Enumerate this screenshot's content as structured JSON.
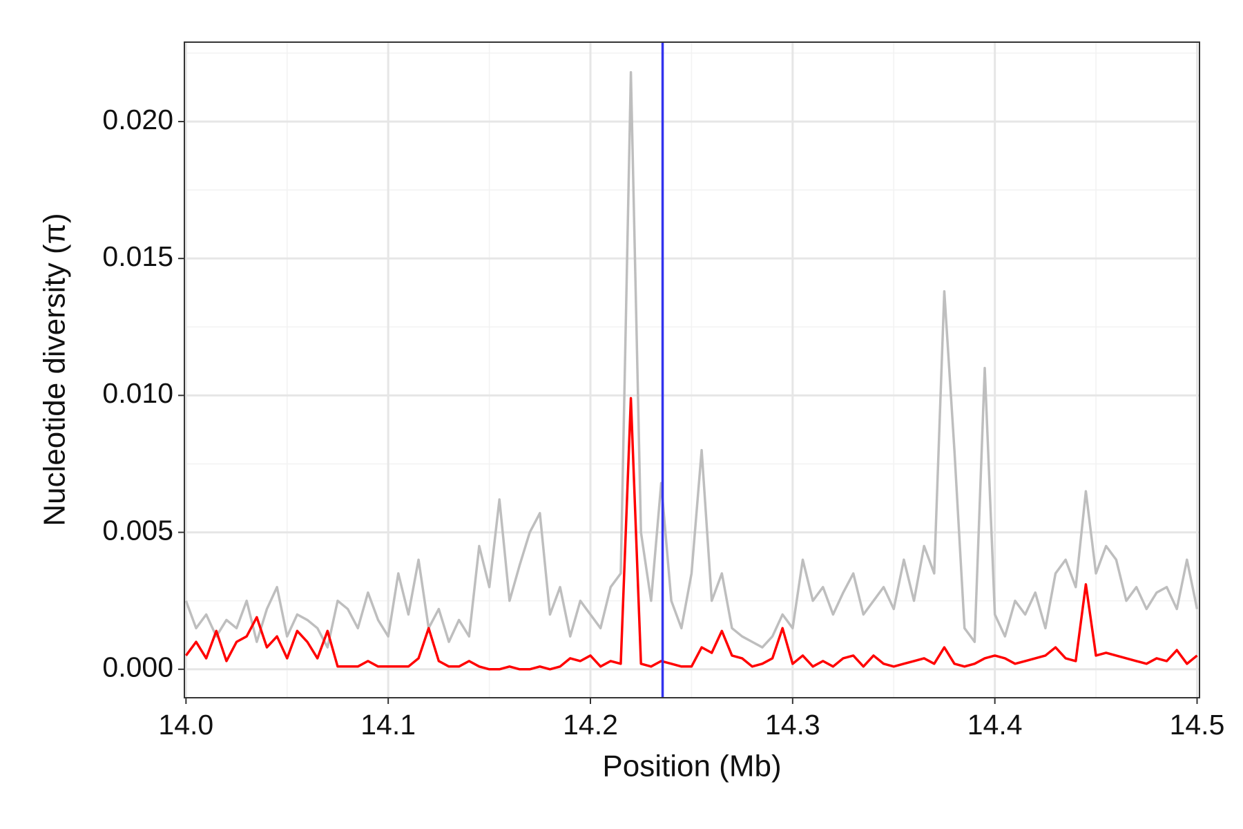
{
  "chart_data": {
    "type": "line",
    "x_label": "Position (Mb)",
    "y_label": "Nucleotide diversity (π)",
    "xlim": [
      13.9992,
      14.5012
    ],
    "ylim": [
      -0.00104,
      0.0229
    ],
    "xticks": [
      {
        "value": 14,
        "label": "14.0"
      },
      14.1,
      14.2,
      14.3,
      14.4,
      14.5
    ],
    "yticks": [
      {
        "value": 0,
        "label": "0.000"
      },
      0.005,
      {
        "value": 0.01,
        "label": "0.010"
      },
      0.015,
      {
        "value": 0.02,
        "label": "0.020"
      }
    ],
    "x_minor_ticks": [
      14.05,
      14.15,
      14.25,
      14.35,
      14.45
    ],
    "y_minor_ticks": [
      0.0025,
      0.0075,
      0.0125,
      0.0175,
      0.0225
    ],
    "grid": true,
    "vline": 14.2357,
    "vline_color": "#3333ee",
    "x": [
      14.0,
      14.005,
      14.01,
      14.015,
      14.02,
      14.025,
      14.03,
      14.035,
      14.04,
      14.045,
      14.05,
      14.055,
      14.06,
      14.065,
      14.07,
      14.075,
      14.08,
      14.085,
      14.09,
      14.095,
      14.1,
      14.105,
      14.11,
      14.115,
      14.12,
      14.125,
      14.13,
      14.135,
      14.14,
      14.145,
      14.15,
      14.155,
      14.16,
      14.165,
      14.17,
      14.175,
      14.18,
      14.185,
      14.19,
      14.195,
      14.2,
      14.205,
      14.21,
      14.215,
      14.22,
      14.225,
      14.23,
      14.235,
      14.24,
      14.245,
      14.25,
      14.255,
      14.26,
      14.265,
      14.27,
      14.275,
      14.28,
      14.285,
      14.29,
      14.295,
      14.3,
      14.305,
      14.31,
      14.315,
      14.32,
      14.325,
      14.33,
      14.335,
      14.34,
      14.345,
      14.35,
      14.355,
      14.36,
      14.365,
      14.37,
      14.375,
      14.38,
      14.385,
      14.39,
      14.395,
      14.4,
      14.405,
      14.41,
      14.415,
      14.42,
      14.425,
      14.43,
      14.435,
      14.44,
      14.445,
      14.45,
      14.455,
      14.46,
      14.465,
      14.47,
      14.475,
      14.48,
      14.485,
      14.49,
      14.495,
      14.5
    ],
    "series": [
      {
        "color": "#bebebe",
        "values": [
          0.0025,
          0.0015,
          0.002,
          0.0012,
          0.0018,
          0.0015,
          0.0025,
          0.001,
          0.0022,
          0.003,
          0.0012,
          0.002,
          0.0018,
          0.0015,
          0.0008,
          0.0025,
          0.0022,
          0.0015,
          0.0028,
          0.0018,
          0.0012,
          0.0035,
          0.002,
          0.004,
          0.0015,
          0.0022,
          0.001,
          0.0018,
          0.0012,
          0.0045,
          0.003,
          0.0062,
          0.0025,
          0.0038,
          0.005,
          0.0057,
          0.002,
          0.003,
          0.0012,
          0.0025,
          0.002,
          0.0015,
          0.003,
          0.0035,
          0.0218,
          0.005,
          0.0025,
          0.0068,
          0.0025,
          0.0015,
          0.0035,
          0.008,
          0.0025,
          0.0035,
          0.0015,
          0.0012,
          0.001,
          0.0008,
          0.0012,
          0.002,
          0.0015,
          0.004,
          0.0025,
          0.003,
          0.002,
          0.0028,
          0.0035,
          0.002,
          0.0025,
          0.003,
          0.0022,
          0.004,
          0.0025,
          0.0045,
          0.0035,
          0.0138,
          0.008,
          0.0015,
          0.001,
          0.011,
          0.002,
          0.0012,
          0.0025,
          0.002,
          0.0028,
          0.0015,
          0.0035,
          0.004,
          0.003,
          0.0065,
          0.0035,
          0.0045,
          0.004,
          0.0025,
          0.003,
          0.0022,
          0.0028,
          0.003,
          0.0022,
          0.004,
          0.0022
        ]
      },
      {
        "color": "#ff0000",
        "values": [
          0.0005,
          0.001,
          0.0004,
          0.0014,
          0.0003,
          0.001,
          0.0012,
          0.0019,
          0.0008,
          0.0012,
          0.0004,
          0.0014,
          0.001,
          0.0004,
          0.0014,
          0.0001,
          0.0001,
          0.0001,
          0.0003,
          0.0001,
          0.0001,
          0.0001,
          0.0001,
          0.0004,
          0.0015,
          0.0003,
          0.0001,
          0.0001,
          0.0003,
          0.0001,
          0,
          0,
          0.0001,
          0,
          0,
          0.0001,
          0,
          0.0001,
          0.0004,
          0.0003,
          0.0005,
          0.0001,
          0.0003,
          0.0002,
          0.0099,
          0.0002,
          0.0001,
          0.0003,
          0.0002,
          0.0001,
          0.0001,
          0.0008,
          0.0006,
          0.0014,
          0.0005,
          0.0004,
          0.0001,
          0.0002,
          0.0004,
          0.0015,
          0.0002,
          0.0005,
          0.0001,
          0.0003,
          0.0001,
          0.0004,
          0.0005,
          0.0001,
          0.0005,
          0.0002,
          0.0001,
          0.0002,
          0.0003,
          0.0004,
          0.0002,
          0.0008,
          0.0002,
          0.0001,
          0.0002,
          0.0004,
          0.0005,
          0.0004,
          0.0002,
          0.0003,
          0.0004,
          0.0005,
          0.0008,
          0.0004,
          0.0003,
          0.0031,
          0.0005,
          0.0006,
          0.0005,
          0.0004,
          0.0003,
          0.0002,
          0.0004,
          0.0003,
          0.0007,
          0.0002,
          0.0005
        ]
      }
    ]
  }
}
